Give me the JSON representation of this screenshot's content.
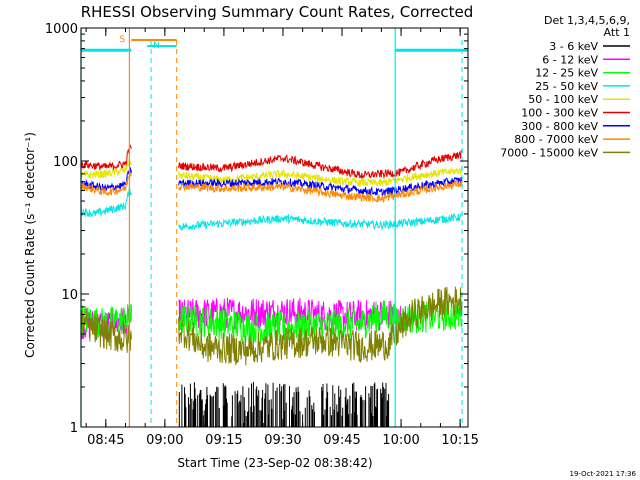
{
  "chart_data": {
    "type": "line",
    "title": "RHESSI Observing Summary Count Rates, Corrected",
    "xlabel": "Start Time (23-Sep-02 08:38:42)",
    "ylabel": "Corrected Count Rate (s⁻¹ detector⁻¹)",
    "x_range": [
      "08:38:42",
      "10:17:00"
    ],
    "ylim": [
      1,
      1000
    ],
    "y_scale": "log",
    "x_ticks": [
      "08:45",
      "09:00",
      "09:15",
      "09:30",
      "09:45",
      "10:00",
      "10:15"
    ],
    "y_ticks": [
      "1",
      "10",
      "100",
      "1000"
    ],
    "legend_header": [
      "Det 1,3,4,5,6,9,",
      "Att 1"
    ],
    "legend_position": "right",
    "timestamp": "19-Oct-2021 17:36",
    "annotations": [
      {
        "label": "S",
        "color": "#ff8800",
        "time_start": "08:51:30",
        "time_end": "09:03:00"
      },
      {
        "label": "N",
        "color": "#00e5e5",
        "time_start": "08:55:30",
        "time_end": "09:03:00"
      }
    ],
    "cyan_bars": [
      {
        "time_start": "08:38:42",
        "time_end": "08:51:30",
        "value": 680
      },
      {
        "time_start": "09:58:30",
        "time_end": "10:17:00",
        "value": 680
      }
    ],
    "solid_lines": [
      {
        "time": "08:38:42",
        "color": "#00e5e5"
      },
      {
        "time": "08:51:00",
        "color": "#ff8800"
      },
      {
        "time": "09:58:30",
        "color": "#00e5e5"
      }
    ],
    "dashed_lines": [
      {
        "time": "08:56:30",
        "color": "#00e5e5"
      },
      {
        "time": "09:03:00",
        "color": "#ff8800"
      },
      {
        "time": "10:15:30",
        "color": "#00e5e5"
      }
    ],
    "gap": [
      "08:51:30",
      "09:03:30"
    ],
    "series": [
      {
        "name": "3 - 6 keV",
        "color": "#000000",
        "points": [
          [
            "09:03:30",
            1.6
          ],
          [
            "09:10:00",
            1.3
          ],
          [
            "09:25:00",
            1.3
          ],
          [
            "09:35:00",
            1.3
          ],
          [
            "09:50:00",
            1.3
          ],
          [
            "09:57:00",
            1.3
          ]
        ]
      },
      {
        "name": "6 - 12 keV",
        "color": "#ff00ff",
        "points": [
          [
            "08:38:42",
            6.0
          ],
          [
            "08:45:00",
            5.8
          ],
          [
            "08:50:00",
            6.2
          ],
          [
            "09:03:30",
            7.0
          ],
          [
            "09:15:00",
            7.2
          ],
          [
            "09:30:00",
            7.3
          ],
          [
            "09:45:00",
            6.8
          ],
          [
            "09:57:00",
            7.0
          ],
          [
            "10:00:00",
            6.5
          ]
        ]
      },
      {
        "name": "12 - 25 keV",
        "color": "#00ff00",
        "points": [
          [
            "08:38:42",
            6.5
          ],
          [
            "08:45:00",
            6.0
          ],
          [
            "08:50:00",
            6.5
          ],
          [
            "09:03:30",
            6.5
          ],
          [
            "09:15:00",
            6.0
          ],
          [
            "09:25:00",
            5.5
          ],
          [
            "09:40:00",
            5.8
          ],
          [
            "09:50:00",
            6.0
          ],
          [
            "09:55:00",
            7.0
          ],
          [
            "10:00:00",
            6.5
          ],
          [
            "10:15:30",
            7.0
          ]
        ]
      },
      {
        "name": "25 - 50 keV",
        "color": "#00e5e5",
        "points": [
          [
            "08:38:42",
            42
          ],
          [
            "08:42:00",
            40
          ],
          [
            "08:46:00",
            43
          ],
          [
            "08:50:00",
            46
          ],
          [
            "08:51:00",
            60
          ],
          [
            "09:03:30",
            32
          ],
          [
            "09:15:00",
            34
          ],
          [
            "09:30:00",
            37
          ],
          [
            "09:45:00",
            34
          ],
          [
            "09:55:00",
            33
          ],
          [
            "10:05:00",
            35
          ],
          [
            "10:15:30",
            38
          ]
        ]
      },
      {
        "name": "50 - 100 keV",
        "color": "#e5e500",
        "points": [
          [
            "08:38:42",
            78
          ],
          [
            "08:45:00",
            80
          ],
          [
            "08:50:00",
            85
          ],
          [
            "08:51:00",
            100
          ],
          [
            "09:03:30",
            78
          ],
          [
            "09:15:00",
            72
          ],
          [
            "09:30:00",
            80
          ],
          [
            "09:45:00",
            70
          ],
          [
            "09:55:00",
            68
          ],
          [
            "10:05:00",
            78
          ],
          [
            "10:15:30",
            85
          ]
        ]
      },
      {
        "name": "100 - 300 keV",
        "color": "#e50000",
        "points": [
          [
            "08:38:42",
            95
          ],
          [
            "08:45:00",
            90
          ],
          [
            "08:50:00",
            95
          ],
          [
            "08:51:00",
            125
          ],
          [
            "09:03:30",
            92
          ],
          [
            "09:15:00",
            88
          ],
          [
            "09:30:00",
            105
          ],
          [
            "09:40:00",
            90
          ],
          [
            "09:50:00",
            78
          ],
          [
            "10:00:00",
            82
          ],
          [
            "10:08:00",
            100
          ],
          [
            "10:15:30",
            112
          ]
        ]
      },
      {
        "name": "300 - 800 keV",
        "color": "#0000ff",
        "points": [
          [
            "08:38:42",
            68
          ],
          [
            "08:45:00",
            62
          ],
          [
            "08:50:00",
            66
          ],
          [
            "08:51:00",
            85
          ],
          [
            "09:03:30",
            68
          ],
          [
            "09:15:00",
            68
          ],
          [
            "09:30:00",
            70
          ],
          [
            "09:45:00",
            62
          ],
          [
            "09:55:00",
            58
          ],
          [
            "10:05:00",
            65
          ],
          [
            "10:15:30",
            72
          ]
        ]
      },
      {
        "name": "800 - 7000 keV",
        "color": "#ff8800",
        "points": [
          [
            "08:38:42",
            65
          ],
          [
            "08:45:00",
            58
          ],
          [
            "08:50:00",
            62
          ],
          [
            "08:51:00",
            80
          ],
          [
            "09:03:30",
            65
          ],
          [
            "09:15:00",
            62
          ],
          [
            "09:30:00",
            64
          ],
          [
            "09:45:00",
            55
          ],
          [
            "09:55:00",
            52
          ],
          [
            "10:05:00",
            60
          ],
          [
            "10:15:30",
            68
          ]
        ]
      },
      {
        "name": "7000 - 15000 keV",
        "color": "#808000",
        "points": [
          [
            "08:38:42",
            6.0
          ],
          [
            "08:45:00",
            5.0
          ],
          [
            "08:50:00",
            4.5
          ],
          [
            "09:03:30",
            5.5
          ],
          [
            "09:10:00",
            4.0
          ],
          [
            "09:20:00",
            3.8
          ],
          [
            "09:30:00",
            4.2
          ],
          [
            "09:40:00",
            4.5
          ],
          [
            "09:50:00",
            4.0
          ],
          [
            "09:57:00",
            4.2
          ],
          [
            "10:03:00",
            7.0
          ],
          [
            "10:10:00",
            8.5
          ],
          [
            "10:15:30",
            9.0
          ]
        ]
      }
    ]
  }
}
